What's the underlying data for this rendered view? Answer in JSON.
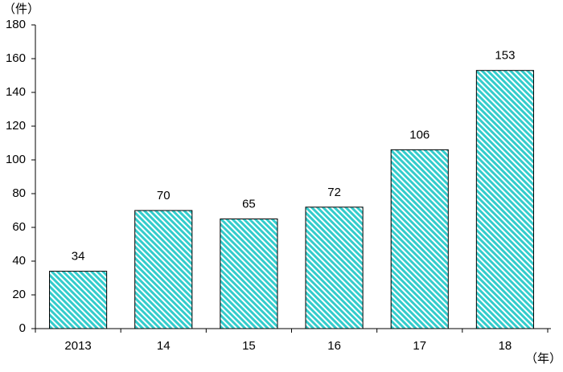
{
  "chart_data": {
    "type": "bar",
    "y_label": "（件）",
    "x_label": "（年）",
    "categories": [
      "2013",
      "14",
      "15",
      "16",
      "17",
      "18"
    ],
    "values": [
      34,
      70,
      65,
      72,
      106,
      153
    ],
    "color": "#33cccc",
    "ylim": [
      0,
      180
    ],
    "yticks": [
      0,
      20,
      40,
      60,
      80,
      100,
      120,
      140,
      160,
      180
    ],
    "grid": false
  }
}
